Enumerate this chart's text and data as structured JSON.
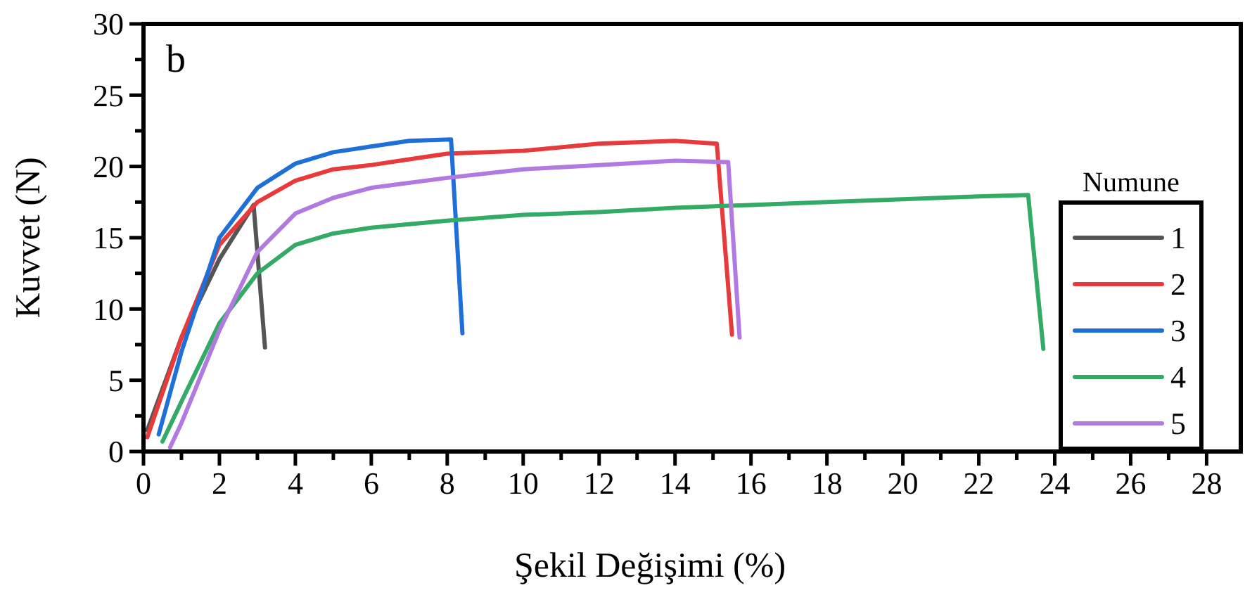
{
  "chart_data": {
    "type": "line",
    "xlabel": "Şekil Değişimi (%)",
    "ylabel": "Kuvvet (N)",
    "legend_title": "Numune",
    "legend": "bottom right",
    "annotations": [
      "b"
    ],
    "xlim": [
      0,
      28.9
    ],
    "ylim": [
      0,
      30
    ],
    "xticks": [
      0,
      {
        "value": 1,
        "label": null
      },
      2,
      {
        "value": 3,
        "label": null
      },
      4,
      {
        "value": 5,
        "label": null
      },
      6,
      {
        "value": 7,
        "label": null
      },
      8,
      {
        "value": 9,
        "label": null
      },
      10,
      {
        "value": 11,
        "label": null
      },
      12,
      {
        "value": 13,
        "label": null
      },
      14,
      {
        "value": 15,
        "label": null
      },
      16,
      {
        "value": 17,
        "label": null
      },
      18,
      {
        "value": 19,
        "label": null
      },
      20,
      {
        "value": 21,
        "label": null
      },
      22,
      {
        "value": 23,
        "label": null
      },
      24,
      {
        "value": 25,
        "label": null
      },
      26,
      {
        "value": 27,
        "label": null
      },
      28
    ],
    "yticks": [
      0,
      {
        "value": 2.5,
        "label": null
      },
      5,
      {
        "value": 7.5,
        "label": null
      },
      10,
      {
        "value": 12.5,
        "label": null
      },
      15,
      {
        "value": 17.5,
        "label": null
      },
      20,
      {
        "value": 22.5,
        "label": null
      },
      25,
      {
        "value": 27.5,
        "label": null
      },
      30
    ],
    "series": [
      {
        "name": "1",
        "color": "#555555",
        "x": [
          0.1,
          1,
          2,
          2.9,
          3.2
        ],
        "values": [
          1.5,
          8,
          13.5,
          17.3,
          7.3
        ]
      },
      {
        "name": "2",
        "color": "#e83a3a",
        "x": [
          0.1,
          1,
          2,
          3,
          4,
          5,
          6,
          7,
          8,
          10,
          12,
          14,
          15.1,
          15.5
        ],
        "values": [
          1,
          8,
          14.5,
          17.5,
          19,
          19.8,
          20.1,
          20.5,
          20.9,
          21.1,
          21.6,
          21.8,
          21.6,
          8.2
        ]
      },
      {
        "name": "3",
        "color": "#1f6fd9",
        "x": [
          0.4,
          1,
          2,
          3,
          4,
          5,
          6,
          7,
          8.1,
          8.4
        ],
        "values": [
          1.2,
          7,
          15,
          18.5,
          20.2,
          21,
          21.4,
          21.8,
          21.9,
          8.3
        ]
      },
      {
        "name": "4",
        "color": "#33aa66",
        "x": [
          0.5,
          1,
          2,
          3,
          4,
          5,
          6,
          8,
          10,
          12,
          14,
          16,
          18,
          20,
          22,
          23.3,
          23.7
        ],
        "values": [
          0.7,
          3.5,
          9,
          12.5,
          14.5,
          15.3,
          15.7,
          16.2,
          16.6,
          16.8,
          17.1,
          17.3,
          17.5,
          17.7,
          17.9,
          18,
          7.2
        ]
      },
      {
        "name": "5",
        "color": "#b07ae0",
        "x": [
          0.7,
          1,
          2,
          3,
          4,
          5,
          6,
          8,
          10,
          12,
          14,
          15.4,
          15.7
        ],
        "values": [
          0.3,
          2,
          8.5,
          14,
          16.7,
          17.8,
          18.5,
          19.2,
          19.8,
          20.1,
          20.4,
          20.3,
          8
        ]
      }
    ]
  }
}
